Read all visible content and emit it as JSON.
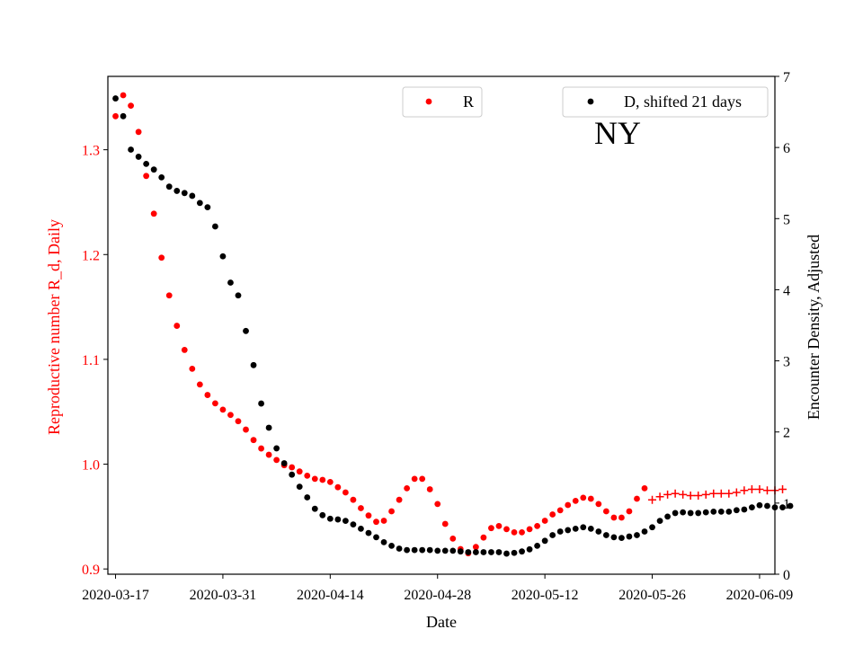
{
  "chart_data": {
    "type": "scatter",
    "state_label": "NY",
    "xlabel": "Date",
    "ylabel_left": "Reproductive number R_d, Daily",
    "ylabel_right": "Encounter Density, Adjusted",
    "x_tick_labels": [
      "2020-03-17",
      "2020-03-31",
      "2020-04-14",
      "2020-04-28",
      "2020-05-12",
      "2020-05-26",
      "2020-06-09"
    ],
    "x_range": [
      "2020-03-16",
      "2020-06-11"
    ],
    "ylim_left": [
      0.895,
      1.37
    ],
    "ylim_right": [
      0,
      7.0
    ],
    "y_left_ticks": [
      "0.9",
      "1.0",
      "1.1",
      "1.2",
      "1.3"
    ],
    "y_right_ticks": [
      "0",
      "1",
      "2",
      "3",
      "4",
      "5",
      "6",
      "7"
    ],
    "grid": false,
    "colors": {
      "R": "#ff0000",
      "D": "#000000",
      "left_axis_text": "#ff0000"
    },
    "legend_R": {
      "label": "R",
      "placement": "top-center"
    },
    "legend_D": {
      "label": "D, shifted 21 days",
      "placement": "top-right"
    },
    "series": [
      {
        "name": "R",
        "axis": "left",
        "marker": "dot",
        "start_date": "2020-03-17",
        "values": [
          1.332,
          1.352,
          1.342,
          1.317,
          1.275,
          1.239,
          1.197,
          1.161,
          1.132,
          1.109,
          1.091,
          1.076,
          1.066,
          1.058,
          1.052,
          1.047,
          1.041,
          1.033,
          1.023,
          1.015,
          1.009,
          1.004,
          0.999,
          0.997,
          0.993,
          0.989,
          0.986,
          0.985,
          0.983,
          0.978,
          0.973,
          0.966,
          0.958,
          0.951,
          0.945,
          0.946,
          0.955,
          0.966,
          0.977,
          0.986,
          0.986,
          0.976,
          0.962,
          0.943,
          0.929,
          0.919,
          0.915,
          0.921,
          0.93,
          0.939,
          0.941,
          0.938,
          0.935,
          0.935,
          0.938,
          0.941,
          0.946,
          0.952,
          0.956,
          0.961,
          0.965,
          0.968,
          0.967,
          0.962,
          0.955,
          0.949,
          0.949,
          0.955,
          0.967,
          0.977
        ]
      },
      {
        "name": "R",
        "axis": "left",
        "marker": "plus",
        "start_date": "2020-05-26",
        "values": [
          0.966,
          0.969,
          0.971,
          0.972,
          0.971,
          0.97,
          0.97,
          0.971,
          0.972,
          0.972,
          0.972,
          0.973,
          0.975,
          0.976,
          0.976,
          0.975,
          0.975,
          0.976
        ]
      },
      {
        "name": "D, shifted 21 days",
        "axis": "right",
        "marker": "dot",
        "start_date": "2020-03-17",
        "values": [
          6.69,
          6.44,
          5.97,
          5.87,
          5.77,
          5.69,
          5.58,
          5.45,
          5.39,
          5.36,
          5.32,
          5.22,
          5.16,
          4.89,
          4.47,
          4.1,
          3.92,
          3.42,
          2.94,
          2.4,
          2.06,
          1.77,
          1.56,
          1.4,
          1.23,
          1.08,
          0.92,
          0.83,
          0.78,
          0.77,
          0.75,
          0.7,
          0.64,
          0.58,
          0.52,
          0.45,
          0.4,
          0.36,
          0.34,
          0.34,
          0.34,
          0.34,
          0.33,
          0.33,
          0.33,
          0.32,
          0.31,
          0.31,
          0.31,
          0.31,
          0.31,
          0.29,
          0.3,
          0.32,
          0.35,
          0.4,
          0.47,
          0.55,
          0.6,
          0.62,
          0.64,
          0.66,
          0.64,
          0.6,
          0.55,
          0.52,
          0.51,
          0.53,
          0.55,
          0.6,
          0.66,
          0.75,
          0.81,
          0.86,
          0.87,
          0.86,
          0.86,
          0.87,
          0.88,
          0.88,
          0.88,
          0.9,
          0.91,
          0.94,
          0.97,
          0.96,
          0.94,
          0.94,
          0.96
        ]
      }
    ]
  }
}
